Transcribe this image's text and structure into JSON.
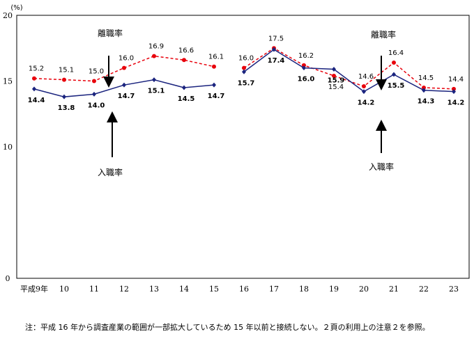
{
  "chart_data": {
    "type": "line",
    "y_unit": "(%)",
    "ylim": [
      0,
      20
    ],
    "y_ticks": [
      "0",
      "10",
      "15",
      "20"
    ],
    "categories": [
      "平成9年",
      "10",
      "11",
      "12",
      "13",
      "14",
      "15",
      "16",
      "17",
      "18",
      "19",
      "20",
      "21",
      "22",
      "23"
    ],
    "series": [
      {
        "name": "離職率",
        "style": "dashed",
        "color": "#e8000b",
        "values": [
          15.2,
          15.1,
          15.0,
          16.0,
          16.9,
          16.6,
          16.1,
          16.0,
          17.5,
          16.2,
          15.4,
          14.6,
          16.4,
          14.5,
          14.4
        ],
        "labels": [
          "15.2",
          "15.1",
          "15.0",
          "16.0",
          "16.9",
          "16.6",
          "16.1",
          "16.0",
          "17.5",
          "16.2",
          "15.4",
          "14.6",
          "16.4",
          "14.5",
          "14.4"
        ]
      },
      {
        "name": "入職率",
        "style": "solid",
        "color": "#1a237e",
        "values": [
          14.4,
          13.8,
          14.0,
          14.7,
          15.1,
          14.5,
          14.7,
          15.7,
          17.4,
          16.0,
          15.9,
          14.2,
          15.5,
          14.3,
          14.2
        ],
        "labels": [
          "14.4",
          "13.8",
          "14.0",
          "14.7",
          "15.1",
          "14.5",
          "14.7",
          "15.7",
          "17.4",
          "16.0",
          "15.9",
          "14.2",
          "15.5",
          "14.3",
          "14.2"
        ]
      }
    ],
    "segment_break_after_index": 6,
    "annotations": [
      {
        "series": 0,
        "text": "離職率",
        "segment": 0
      },
      {
        "series": 1,
        "text": "入職率",
        "segment": 0
      },
      {
        "series": 0,
        "text": "離職率",
        "segment": 1
      },
      {
        "series": 1,
        "text": "入職率",
        "segment": 1
      }
    ],
    "grid": false
  },
  "footnote": "注：平成 16 年から調査産業の範囲が一部拡大しているため 15 年以前と接続しない。２頁の利用上の注意２を参照。"
}
